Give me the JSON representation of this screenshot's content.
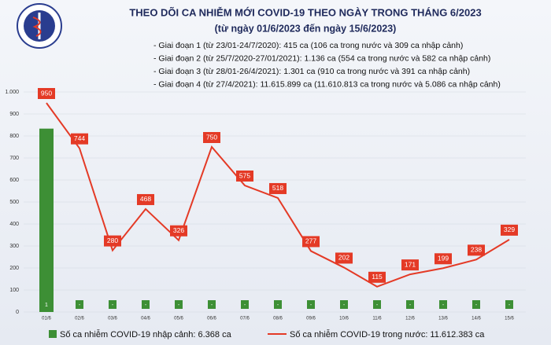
{
  "chart_data": {
    "type": "bar_line",
    "title": "THEO DÕI CA NHIỄM MỚI COVID-19 THEO NGÀY TRONG THÁNG 6/2023",
    "subtitle": "(từ ngày 01/6/2023 đến ngày 15/6/2023)",
    "annotations": [
      "- Giai đoạn 1 (từ 23/01-24/7/2020): 415 ca (106 ca trong nước và 309 ca nhập cảnh)",
      "- Giai đoạn 2 (từ 25/7/2020-27/01/2021): 1.136 ca (554 ca trong nước và 582 ca nhập cảnh)",
      "- Giai đoạn 3 (từ 28/01-26/4/2021): 1.301 ca (910 ca trong nước và 391 ca nhập cảnh)",
      "- Giai đoạn 4 (từ 27/4/2021): 11.615.899 ca (11.610.813 ca trong nước và 5.086 ca nhập cảnh)"
    ],
    "categories": [
      "01/6",
      "02/6",
      "03/6",
      "04/6",
      "05/6",
      "06/6",
      "07/6",
      "08/6",
      "09/6",
      "10/6",
      "11/6",
      "12/6",
      "13/6",
      "14/6",
      "15/6"
    ],
    "ylim": [
      0,
      1000
    ],
    "yticks": [
      0,
      100,
      200,
      300,
      400,
      500,
      600,
      700,
      800,
      900,
      {
        "value": 1000,
        "label": "1.000"
      }
    ],
    "y2lim": [
      0,
      1.2
    ],
    "grid": true,
    "series": [
      {
        "name": "Số ca nhiễm COVID-19 nhập cảnh: 6.368 ca",
        "type": "bar",
        "axis": "y2",
        "color": "#3d8f35",
        "values": [
          1,
          0,
          0,
          0,
          0,
          0,
          0,
          0,
          0,
          0,
          0,
          0,
          0,
          0,
          0
        ],
        "value_labels": [
          "1",
          "-",
          "-",
          "-",
          "-",
          "-",
          "-",
          "-",
          "-",
          "-",
          "-",
          "-",
          "-",
          "-",
          "-"
        ]
      },
      {
        "name": "Số ca nhiễm COVID-19 trong nước: 11.612.383 ca",
        "type": "line",
        "color": "#e43a26",
        "values": [
          950,
          744,
          280,
          468,
          326,
          750,
          575,
          518,
          277,
          202,
          115,
          171,
          199,
          238,
          329
        ]
      }
    ]
  }
}
